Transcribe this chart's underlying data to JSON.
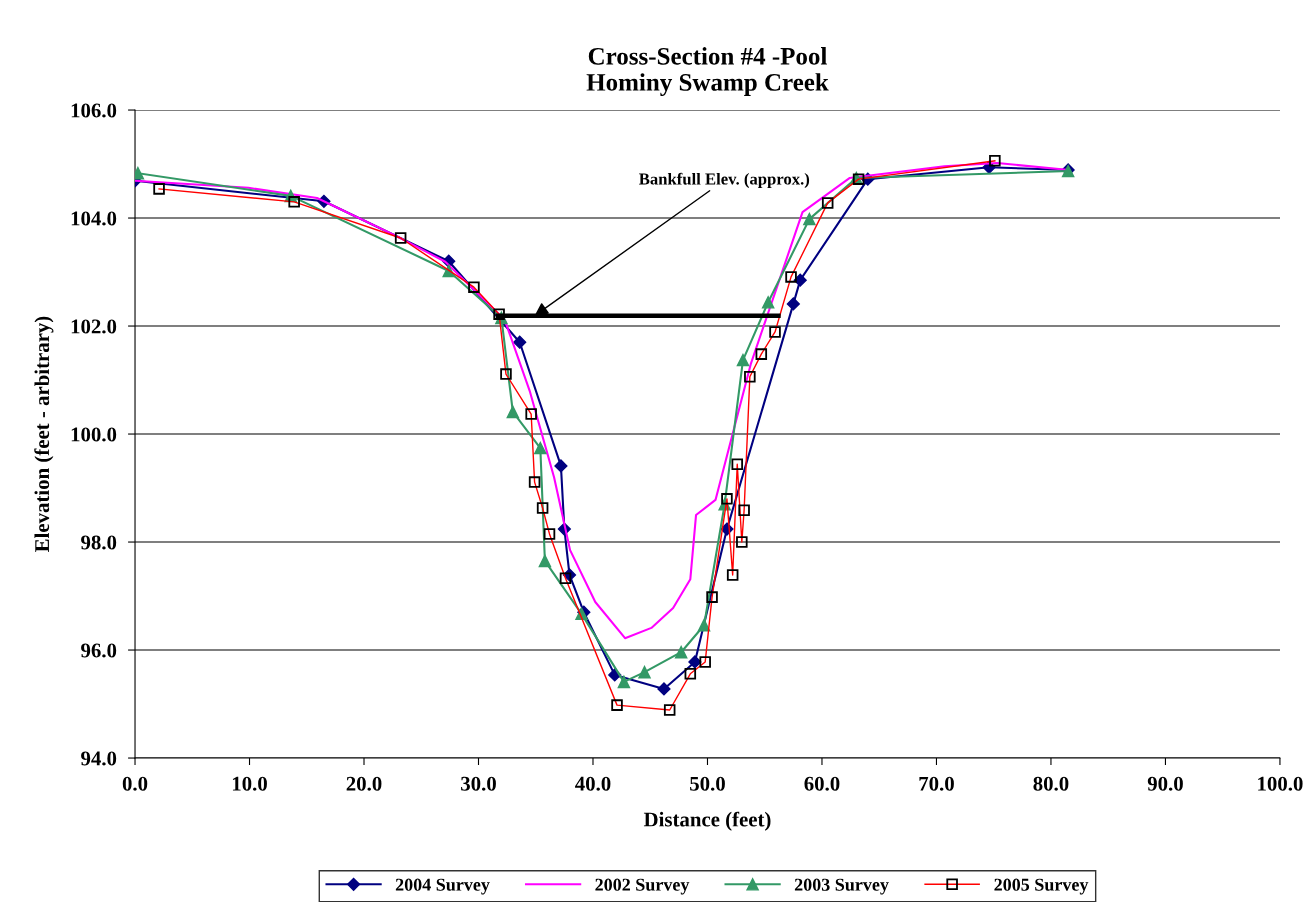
{
  "chart_data": {
    "type": "line",
    "title": "Cross-Section #4 -Pool\nHominy Swamp Creek",
    "xlabel": "Distance (feet)",
    "ylabel": "Elevation (feet - arbitrary)",
    "xlim": [
      0,
      100
    ],
    "ylim": [
      94,
      106
    ],
    "xticks": [
      {
        "value": 0,
        "label": "0.0"
      },
      {
        "value": 10,
        "label": "10.0"
      },
      {
        "value": 20,
        "label": "20.0"
      },
      {
        "value": 30,
        "label": "30.0"
      },
      {
        "value": 40,
        "label": "40.0"
      },
      {
        "value": 50,
        "label": "50.0"
      },
      {
        "value": 60,
        "label": "60.0"
      },
      {
        "value": 70,
        "label": "70.0"
      },
      {
        "value": 80,
        "label": "80.0"
      },
      {
        "value": 90,
        "label": "90.0"
      },
      {
        "value": 100,
        "label": "100.0"
      }
    ],
    "yticks": [
      {
        "value": 94,
        "label": "94.0"
      },
      {
        "value": 96,
        "label": "96.0"
      },
      {
        "value": 98,
        "label": "98.0"
      },
      {
        "value": 100,
        "label": "100.0"
      },
      {
        "value": 102,
        "label": "102.0"
      },
      {
        "value": 104,
        "label": "104.0"
      },
      {
        "value": 106,
        "label": "106.0"
      }
    ],
    "grid": "y",
    "legend": "bottom",
    "annotations": [
      {
        "text": "Bankfull Elev. (approx.)",
        "x": 34.9,
        "y": 102.19
      }
    ],
    "series": [
      {
        "name": "2004 Survey",
        "color": "#000080",
        "marker": "diamond",
        "x": [
          0.0,
          16.5,
          27.4,
          33.6,
          37.2,
          37.5,
          37.95,
          39.2,
          41.9,
          46.2,
          48.9,
          51.7,
          57.5,
          58.1,
          64.0,
          74.6,
          81.5
        ],
        "values": [
          104.69,
          104.31,
          103.2,
          101.7,
          99.41,
          98.24,
          97.39,
          96.7,
          95.54,
          95.28,
          95.78,
          98.24,
          102.41,
          102.85,
          104.72,
          104.94,
          104.89
        ]
      },
      {
        "name": "2002 Survey",
        "color": "#ff00ff",
        "marker": "none",
        "x": [
          0.0,
          9.9,
          15.9,
          22.8,
          27.1,
          32.3,
          34.5,
          36.6,
          38.0,
          40.2,
          42.8,
          45.1,
          47.0,
          48.5,
          49.0,
          50.7,
          53.8,
          58.3,
          62.4,
          70.7,
          75.3,
          81.5
        ],
        "values": [
          104.69,
          104.56,
          104.37,
          103.67,
          103.19,
          102.11,
          100.78,
          99.2,
          97.85,
          96.89,
          96.22,
          96.41,
          96.78,
          97.31,
          98.5,
          98.78,
          101.31,
          104.11,
          104.74,
          104.96,
          105.02,
          104.89
        ]
      },
      {
        "name": "2003 Survey",
        "color": "#339966",
        "marker": "triangle",
        "x": [
          0.25,
          13.6,
          27.4,
          32.0,
          33.0,
          35.4,
          35.8,
          39.0,
          42.7,
          44.5,
          47.7,
          49.7,
          51.5,
          53.1,
          55.3,
          58.9,
          63.0,
          81.5
        ],
        "values": [
          104.83,
          104.41,
          103.02,
          102.15,
          100.41,
          99.74,
          97.65,
          96.67,
          95.41,
          95.59,
          95.96,
          96.46,
          98.7,
          101.37,
          102.44,
          103.98,
          104.74,
          104.87
        ]
      },
      {
        "name": "2005 Survey",
        "color": "#ff0000",
        "marker": "square",
        "x": [
          2.1,
          13.9,
          23.2,
          29.6,
          31.8,
          32.4,
          34.6,
          34.9,
          35.6,
          36.2,
          37.6,
          42.1,
          46.7,
          48.5,
          49.8,
          50.4,
          51.7,
          52.2,
          52.6,
          53.0,
          53.2,
          53.7,
          54.7,
          55.9,
          57.3,
          60.5,
          63.2,
          75.1
        ],
        "values": [
          104.54,
          104.3,
          103.63,
          102.72,
          102.22,
          101.11,
          100.37,
          99.11,
          98.63,
          98.15,
          97.33,
          94.98,
          94.89,
          95.56,
          95.78,
          96.98,
          98.8,
          97.39,
          99.44,
          98.0,
          98.59,
          101.06,
          101.48,
          101.89,
          102.91,
          104.28,
          104.72,
          105.06
        ]
      },
      {
        "type": "line",
        "color": "#000000",
        "x": [
          31.7,
          56.2
        ],
        "values": [
          102.19,
          102.19
        ]
      }
    ]
  }
}
